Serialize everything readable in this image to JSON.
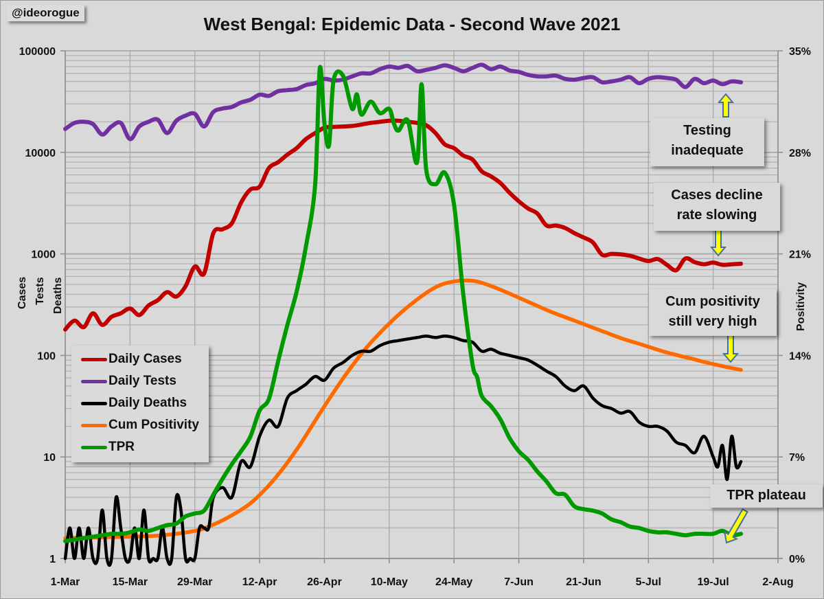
{
  "handle": "@ideorogue",
  "chart_data": {
    "type": "line",
    "title": "West Bengal: Epidemic Data - Second Wave 2021",
    "xlabel": "",
    "ylabel_left_lines": [
      "Cases",
      "Tests",
      "Deaths"
    ],
    "ylabel_right": "Positivity",
    "left_axis": {
      "scale": "log",
      "ylim": [
        1,
        100000
      ],
      "tick_labels": [
        "1",
        "10",
        "100",
        "1000",
        "10000",
        "100000"
      ],
      "tick_values": [
        1,
        10,
        100,
        1000,
        10000,
        100000
      ]
    },
    "right_axis": {
      "scale": "linear",
      "ylim": [
        0,
        35
      ],
      "tick_labels": [
        "0%",
        "7%",
        "14%",
        "21%",
        "28%",
        "35%"
      ],
      "tick_values": [
        0,
        7,
        14,
        21,
        28,
        35
      ]
    },
    "x_axis": {
      "start_date": "1-Mar",
      "range_days": [
        0,
        154
      ],
      "tick_days": [
        0,
        14,
        28,
        42,
        56,
        70,
        84,
        98,
        112,
        126,
        140,
        154
      ],
      "tick_labels": [
        "1-Mar",
        "15-Mar",
        "29-Mar",
        "12-Apr",
        "26-Apr",
        "10-May",
        "24-May",
        "7-Jun",
        "21-Jun",
        "5-Jul",
        "19-Jul",
        "2-Aug"
      ]
    },
    "grid": true,
    "legend_position": "lower-left",
    "series": [
      {
        "name": "Daily Cases",
        "axis": "left",
        "color": "#c00000",
        "x": [
          0,
          2,
          4,
          6,
          8,
          10,
          12,
          14,
          16,
          18,
          20,
          22,
          24,
          26,
          28,
          30,
          32,
          34,
          36,
          38,
          40,
          42,
          44,
          46,
          48,
          50,
          52,
          54,
          56,
          58,
          60,
          62,
          64,
          66,
          68,
          70,
          72,
          74,
          76,
          78,
          80,
          82,
          84,
          86,
          88,
          90,
          92,
          94,
          96,
          98,
          100,
          102,
          104,
          106,
          108,
          110,
          112,
          114,
          116,
          118,
          120,
          122,
          124,
          126,
          128,
          130,
          132,
          134,
          136,
          138,
          140,
          142,
          144,
          146
        ],
        "values": [
          180,
          220,
          190,
          260,
          200,
          240,
          260,
          290,
          250,
          310,
          350,
          420,
          380,
          480,
          750,
          640,
          1600,
          1750,
          2000,
          3200,
          4300,
          4600,
          7000,
          8000,
          9500,
          11000,
          13500,
          15500,
          17500,
          17800,
          18000,
          18200,
          18800,
          19500,
          20000,
          20500,
          20500,
          20000,
          19500,
          18500,
          15500,
          12000,
          11000,
          9300,
          8500,
          6500,
          5800,
          5000,
          4000,
          3300,
          2800,
          2500,
          1900,
          1900,
          1800,
          1600,
          1450,
          1300,
          980,
          1000,
          990,
          960,
          900,
          850,
          890,
          780,
          690,
          900,
          830,
          790,
          820,
          780,
          790,
          800
        ]
      },
      {
        "name": "Daily Tests",
        "axis": "left",
        "color": "#7030a0",
        "x": [
          0,
          2,
          4,
          6,
          8,
          10,
          12,
          14,
          16,
          18,
          20,
          22,
          24,
          26,
          28,
          30,
          32,
          34,
          36,
          38,
          40,
          42,
          44,
          46,
          48,
          50,
          52,
          54,
          56,
          58,
          60,
          62,
          64,
          66,
          68,
          70,
          72,
          74,
          76,
          78,
          80,
          82,
          84,
          86,
          88,
          90,
          92,
          94,
          96,
          98,
          100,
          102,
          104,
          106,
          108,
          110,
          112,
          114,
          116,
          118,
          120,
          122,
          124,
          126,
          128,
          130,
          132,
          134,
          136,
          138,
          140,
          142,
          144,
          146
        ],
        "values": [
          17000,
          19500,
          20000,
          19000,
          15000,
          18000,
          19500,
          13500,
          18000,
          20000,
          21000,
          15500,
          20500,
          23000,
          24000,
          18000,
          25000,
          27000,
          28000,
          31000,
          33000,
          37000,
          36000,
          40000,
          41000,
          42000,
          46000,
          48000,
          53000,
          51000,
          52000,
          56000,
          60000,
          60000,
          66000,
          70000,
          68000,
          71000,
          63000,
          65000,
          68000,
          72000,
          68000,
          63000,
          68000,
          73000,
          66000,
          70000,
          64000,
          62000,
          58000,
          56000,
          56000,
          57000,
          53000,
          52000,
          54000,
          55000,
          49000,
          50000,
          52000,
          55000,
          48000,
          53000,
          55000,
          54000,
          52000,
          44000,
          53000,
          48000,
          51000,
          47000,
          50000,
          49000
        ]
      },
      {
        "name": "Daily Deaths",
        "axis": "left",
        "color": "#000000",
        "x": [
          0,
          1,
          2,
          3,
          4,
          5,
          6,
          7,
          8,
          9,
          10,
          11,
          12,
          13,
          14,
          15,
          16,
          17,
          18,
          19,
          20,
          21,
          22,
          23,
          24,
          25,
          26,
          27,
          28,
          29,
          30,
          31,
          32,
          34,
          36,
          38,
          40,
          42,
          44,
          46,
          48,
          50,
          52,
          54,
          56,
          58,
          60,
          62,
          64,
          66,
          68,
          70,
          72,
          74,
          76,
          78,
          80,
          82,
          84,
          86,
          88,
          90,
          92,
          94,
          96,
          98,
          100,
          102,
          104,
          106,
          108,
          110,
          112,
          114,
          116,
          118,
          120,
          122,
          124,
          126,
          128,
          130,
          132,
          134,
          136,
          138,
          140,
          141,
          142,
          143,
          144,
          145,
          146
        ],
        "values": [
          1,
          2,
          1,
          2,
          1,
          2,
          1,
          1,
          3,
          1,
          1,
          4,
          2,
          1,
          1,
          2,
          1,
          3,
          1,
          1,
          1,
          2,
          1,
          1,
          4,
          3,
          1,
          1,
          1,
          2,
          2,
          2,
          4,
          5,
          4,
          9,
          8,
          16,
          23,
          20,
          38,
          45,
          52,
          62,
          57,
          75,
          85,
          100,
          110,
          110,
          125,
          135,
          140,
          145,
          150,
          155,
          150,
          155,
          150,
          140,
          135,
          110,
          115,
          105,
          100,
          95,
          90,
          80,
          70,
          62,
          50,
          45,
          50,
          38,
          32,
          30,
          27,
          28,
          22,
          20,
          20,
          18,
          14,
          13,
          11,
          16,
          10,
          8,
          13,
          6,
          16,
          8,
          9
        ]
      },
      {
        "name": "Cum Positivity",
        "axis": "right",
        "color": "#ff6a00",
        "x": [
          0,
          7,
          14,
          21,
          28,
          31,
          35,
          40,
          45,
          50,
          55,
          60,
          65,
          70,
          75,
          80,
          84,
          88,
          91,
          95,
          100,
          105,
          110,
          115,
          120,
          125,
          130,
          135,
          140,
          146
        ],
        "values": [
          1.4,
          1.45,
          1.5,
          1.6,
          1.9,
          2.2,
          2.8,
          3.8,
          5.4,
          7.5,
          10.0,
          12.4,
          14.5,
          16.2,
          17.6,
          18.7,
          19.1,
          19.15,
          18.9,
          18.4,
          17.7,
          17.0,
          16.4,
          15.8,
          15.2,
          14.7,
          14.2,
          13.8,
          13.4,
          13.0
        ]
      },
      {
        "name": "TPR",
        "axis": "right",
        "color": "#009900",
        "x": [
          0,
          2,
          4,
          6,
          8,
          10,
          12,
          14,
          16,
          18,
          20,
          22,
          24,
          26,
          28,
          30,
          32,
          34,
          36,
          38,
          40,
          42,
          44,
          46,
          48,
          50,
          52,
          54,
          55,
          56,
          57,
          58,
          60,
          62,
          63,
          64,
          66,
          68,
          70,
          71,
          72,
          74,
          76,
          77,
          78,
          80,
          82,
          84,
          86,
          88,
          89,
          90,
          92,
          94,
          96,
          98,
          100,
          102,
          104,
          106,
          108,
          110,
          112,
          114,
          116,
          118,
          120,
          122,
          124,
          126,
          128,
          130,
          132,
          134,
          136,
          138,
          140,
          142,
          144,
          146
        ],
        "values": [
          1.2,
          1.3,
          1.4,
          1.5,
          1.6,
          1.7,
          1.7,
          1.8,
          2.0,
          1.9,
          2.1,
          2.3,
          2.4,
          2.9,
          3.1,
          3.3,
          4.4,
          5.5,
          6.5,
          7.4,
          8.4,
          10.2,
          11.0,
          13.6,
          16.1,
          18.4,
          21.5,
          25.8,
          33.8,
          30.0,
          28.5,
          33.0,
          33.3,
          31.0,
          32.0,
          30.6,
          31.5,
          30.7,
          31.0,
          30.0,
          29.5,
          30.2,
          27.3,
          32.7,
          26.8,
          25.8,
          26.6,
          24.4,
          18.2,
          13.4,
          12.5,
          11.2,
          10.5,
          9.6,
          8.3,
          7.4,
          6.8,
          6.0,
          5.3,
          4.5,
          4.4,
          3.6,
          3.4,
          3.3,
          3.1,
          2.7,
          2.5,
          2.2,
          2.1,
          1.9,
          1.8,
          1.8,
          1.7,
          1.6,
          1.7,
          1.7,
          1.7,
          1.9,
          1.6,
          1.7
        ]
      }
    ],
    "annotations": [
      {
        "text_lines": [
          "Testing",
          "inadequate"
        ],
        "arrow": "up",
        "target_series": "Daily Tests"
      },
      {
        "text_lines": [
          "Cases decline",
          "rate slowing"
        ],
        "arrow": "down",
        "target_series": "Daily Cases"
      },
      {
        "text_lines": [
          "Cum positivity",
          "still very high"
        ],
        "arrow": "down",
        "target_series": "Cum Positivity"
      },
      {
        "text_lines": [
          "TPR plateau"
        ],
        "arrow": "down-left",
        "target_series": "TPR"
      }
    ],
    "arrow_fill": "#ffff00",
    "arrow_stroke": "#41719c"
  }
}
